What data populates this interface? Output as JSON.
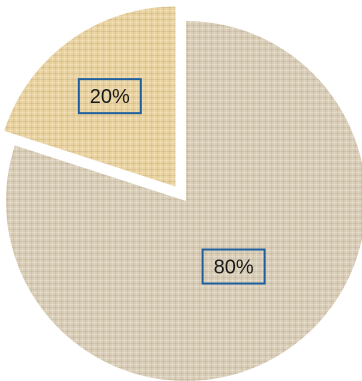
{
  "chart_data": {
    "type": "pie",
    "categories": [
      "",
      ""
    ],
    "values": [
      80,
      20
    ],
    "data_labels": [
      "80%",
      "20%"
    ],
    "colors": [
      "#d9cdb6",
      "#ead29c"
    ],
    "exploded": [
      false,
      true
    ],
    "title": "",
    "legend": "none"
  }
}
